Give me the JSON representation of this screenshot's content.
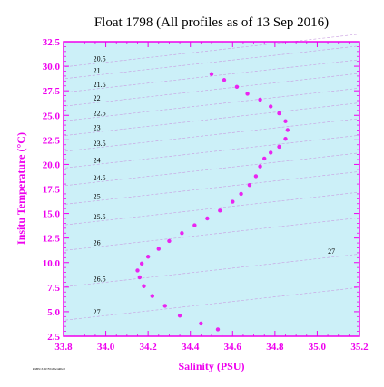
{
  "chart_data": {
    "type": "scatter",
    "title": "Float 1798  (All profiles as of 13 Sep 2016)",
    "xlabel": "Salinity (PSU)",
    "ylabel": "Insitu Temperature (°C)",
    "xlim": [
      33.8,
      35.2
    ],
    "ylim": [
      2.5,
      32.5
    ],
    "xticks": [
      "33.8",
      "34.0",
      "34.2",
      "34.4",
      "34.6",
      "34.8",
      "35.0",
      "35.2"
    ],
    "yticks": [
      "2.5",
      "5.0",
      "7.5",
      "10.0",
      "12.5",
      "15.0",
      "17.5",
      "20.0",
      "22.5",
      "25.0",
      "27.5",
      "30.0",
      "32.5"
    ],
    "grid": false,
    "colors": {
      "accent": "#ee00ee",
      "plot_background": "#ccf0f8",
      "isopycnal": "#c89ae0",
      "title": "#000000"
    },
    "isopycnal_labels": [
      {
        "sigma": "20.5",
        "s": 33.94,
        "t": 30.5
      },
      {
        "sigma": "21",
        "s": 33.94,
        "t": 29.3
      },
      {
        "sigma": "21.5",
        "s": 33.94,
        "t": 27.9
      },
      {
        "sigma": "22",
        "s": 33.94,
        "t": 26.5
      },
      {
        "sigma": "22.5",
        "s": 33.94,
        "t": 25.0
      },
      {
        "sigma": "23",
        "s": 33.94,
        "t": 23.5
      },
      {
        "sigma": "23.5",
        "s": 33.94,
        "t": 21.9
      },
      {
        "sigma": "24",
        "s": 33.94,
        "t": 20.2
      },
      {
        "sigma": "24.5",
        "s": 33.94,
        "t": 18.4
      },
      {
        "sigma": "25",
        "s": 33.94,
        "t": 16.5
      },
      {
        "sigma": "25.5",
        "s": 33.94,
        "t": 14.4
      },
      {
        "sigma": "26",
        "s": 33.94,
        "t": 11.8
      },
      {
        "sigma": "26.5",
        "s": 33.94,
        "t": 8.1
      },
      {
        "sigma": "27",
        "s": 33.94,
        "t": 4.7
      },
      {
        "sigma": "27",
        "s": 35.05,
        "t": 10.9
      }
    ],
    "series": [
      {
        "marker": "dot",
        "x": [
          34.53,
          34.45,
          34.35,
          34.28,
          34.22,
          34.18,
          34.16,
          34.15,
          34.17,
          34.2,
          34.25,
          34.3,
          34.36,
          34.42,
          34.48,
          34.54,
          34.6,
          34.64,
          34.68,
          34.71,
          34.73,
          34.75,
          34.78,
          34.82,
          34.85,
          34.86,
          34.85,
          34.82,
          34.78,
          34.73,
          34.67,
          34.62,
          34.56,
          34.5
        ],
        "y": [
          3.2,
          3.8,
          4.6,
          5.6,
          6.6,
          7.6,
          8.5,
          9.2,
          9.9,
          10.6,
          11.4,
          12.2,
          13.0,
          13.8,
          14.5,
          15.3,
          16.2,
          17.0,
          17.9,
          18.8,
          19.8,
          20.6,
          21.2,
          21.8,
          22.6,
          23.5,
          24.4,
          25.2,
          25.9,
          26.6,
          27.2,
          27.9,
          28.6,
          29.2
        ]
      }
    ]
  },
  "footer": {
    "credit": "PMEL/UW/NOAA/ARGO"
  }
}
